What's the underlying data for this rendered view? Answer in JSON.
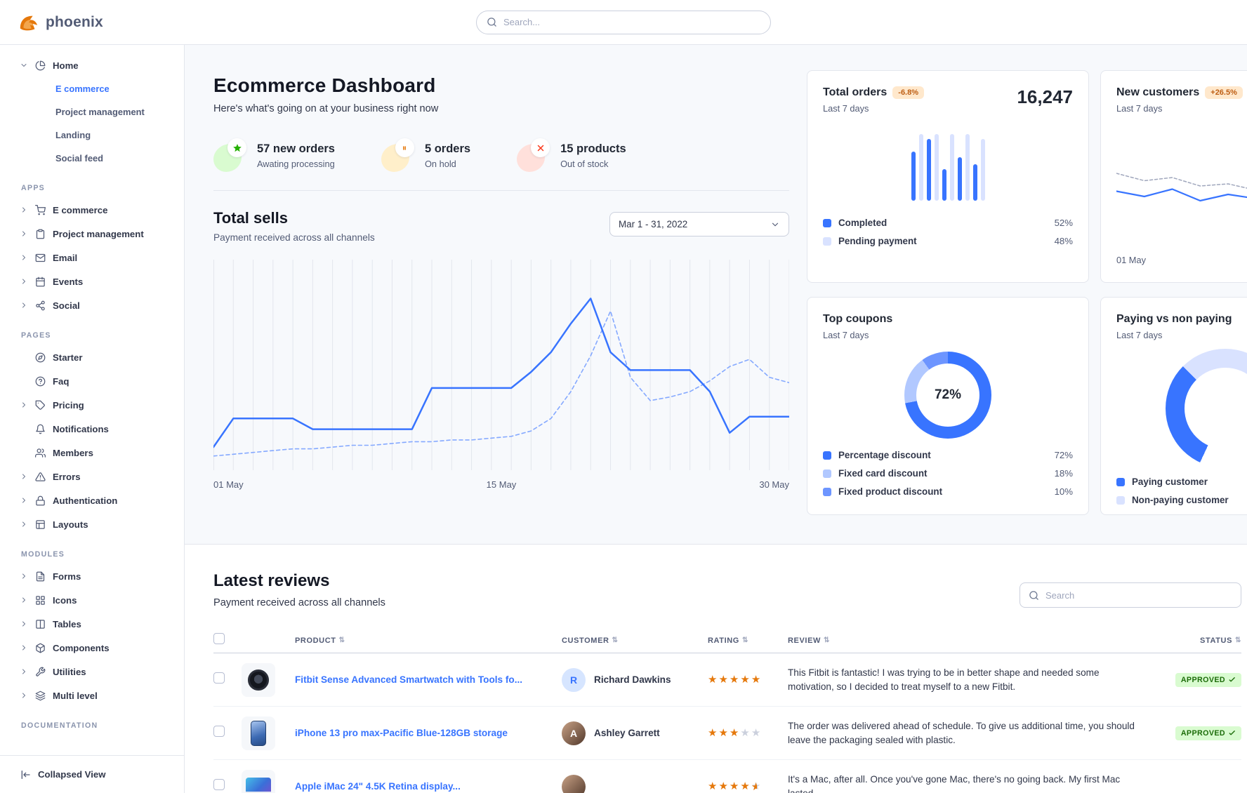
{
  "brand": {
    "name": "phoenix"
  },
  "header": {
    "search_placeholder": "Search..."
  },
  "sidebar": {
    "footer_label": "Collapsed View",
    "sections": [
      {
        "label": "",
        "items": [
          {
            "label": "Home",
            "icon": "pie-chart",
            "caret": "down",
            "children": [
              {
                "label": "E commerce",
                "active": true
              },
              {
                "label": "Project management"
              },
              {
                "label": "Landing"
              },
              {
                "label": "Social feed"
              }
            ]
          }
        ]
      },
      {
        "label": "APPS",
        "items": [
          {
            "label": "E commerce",
            "icon": "shopping-cart",
            "caret": "right"
          },
          {
            "label": "Project management",
            "icon": "clipboard",
            "caret": "right"
          },
          {
            "label": "Email",
            "icon": "mail",
            "caret": "right"
          },
          {
            "label": "Events",
            "icon": "calendar",
            "caret": "right"
          },
          {
            "label": "Social",
            "icon": "share-2",
            "caret": "right"
          }
        ]
      },
      {
        "label": "PAGES",
        "items": [
          {
            "label": "Starter",
            "icon": "compass"
          },
          {
            "label": "Faq",
            "icon": "help-circle"
          },
          {
            "label": "Pricing",
            "icon": "tag",
            "caret": "right"
          },
          {
            "label": "Notifications",
            "icon": "bell"
          },
          {
            "label": "Members",
            "icon": "users"
          },
          {
            "label": "Errors",
            "icon": "alert-triangle",
            "caret": "right"
          },
          {
            "label": "Authentication",
            "icon": "lock",
            "caret": "right"
          },
          {
            "label": "Layouts",
            "icon": "layout",
            "caret": "right"
          }
        ]
      },
      {
        "label": "MODULES",
        "items": [
          {
            "label": "Forms",
            "icon": "file-text",
            "caret": "right"
          },
          {
            "label": "Icons",
            "icon": "grid",
            "caret": "right"
          },
          {
            "label": "Tables",
            "icon": "columns",
            "caret": "right"
          },
          {
            "label": "Components",
            "icon": "package",
            "caret": "right"
          },
          {
            "label": "Utilities",
            "icon": "tool",
            "caret": "right"
          },
          {
            "label": "Multi level",
            "icon": "layers",
            "caret": "right"
          }
        ]
      },
      {
        "label": "DOCUMENTATION",
        "items": []
      }
    ]
  },
  "hero": {
    "title": "Ecommerce Dashboard",
    "subtitle": "Here's what's going on at your business right now"
  },
  "stats": [
    {
      "value": "57 new orders",
      "label": "Awating processing",
      "icon": "star-filled",
      "theme": "success"
    },
    {
      "value": "5 orders",
      "label": "On hold",
      "icon": "pause",
      "theme": "warning"
    },
    {
      "value": "15 products",
      "label": "Out of stock",
      "icon": "x",
      "theme": "danger"
    }
  ],
  "total_sells": {
    "title": "Total sells",
    "subtitle": "Payment received across all channels",
    "date_range": "Mar 1 - 31, 2022",
    "chart_data": {
      "type": "line",
      "x_labels": [
        "01 May",
        "15 May",
        "30 May"
      ],
      "ylim": [
        0,
        100
      ],
      "grid": "vertical",
      "series": [
        {
          "name": "current",
          "style": "solid",
          "color": "#3874ff",
          "values": [
            9,
            25,
            25,
            25,
            25,
            19,
            19,
            19,
            19,
            19,
            19,
            42,
            42,
            42,
            42,
            42,
            51,
            62,
            78,
            92,
            62,
            52,
            52,
            52,
            52,
            40,
            17,
            26,
            26,
            26
          ]
        },
        {
          "name": "previous",
          "style": "dashed",
          "color": "#85a9ff",
          "values": [
            4,
            5,
            6,
            7,
            8,
            8,
            9,
            10,
            10,
            11,
            12,
            12,
            13,
            13,
            14,
            15,
            18,
            25,
            40,
            60,
            85,
            48,
            35,
            37,
            40,
            46,
            54,
            58,
            48,
            45
          ]
        }
      ]
    }
  },
  "cards": {
    "total_orders": {
      "title": "Total orders",
      "badge": "-6.8%",
      "period": "Last 7 days",
      "value": "16,247",
      "legend": [
        {
          "label": "Completed",
          "value": "52%",
          "color": "#3874ff"
        },
        {
          "label": "Pending payment",
          "value": "48%",
          "color": "#d9e2ff"
        }
      ],
      "chart_data": {
        "type": "bar",
        "values": [
          70,
          95,
          88,
          95,
          45,
          95,
          62,
          95,
          52,
          88
        ],
        "series_keys": [
          "completed",
          "pending",
          "completed",
          "pending",
          "completed",
          "pending",
          "completed",
          "pending",
          "completed",
          "pending"
        ]
      }
    },
    "new_customers": {
      "title": "New customers",
      "badge": "+26.5%",
      "period": "Last 7 days",
      "x_label": "01 May",
      "chart_data": {
        "type": "line",
        "series": [
          {
            "name": "previous",
            "style": "dashed",
            "color": "#9fa6bc",
            "values": [
              62,
              55,
              58,
              50,
              52,
              46,
              49,
              43,
              46,
              40
            ]
          },
          {
            "name": "current",
            "style": "solid",
            "color": "#3874ff",
            "values": [
              45,
              40,
              47,
              36,
              42,
              38,
              40,
              62,
              54,
              58
            ]
          }
        ]
      }
    },
    "top_coupons": {
      "title": "Top coupons",
      "period": "Last 7 days",
      "center_label": "72%",
      "chart_data": {
        "type": "donut",
        "segments": [
          {
            "label": "Percentage discount",
            "value": 72,
            "display": "72%",
            "color": "#3874ff"
          },
          {
            "label": "Fixed card discount",
            "value": 18,
            "display": "18%",
            "color": "#b1c8ff"
          },
          {
            "label": "Fixed product discount",
            "value": 10,
            "display": "10%",
            "color": "#6d95ff"
          }
        ]
      }
    },
    "paying": {
      "title": "Paying vs non paying",
      "period": "Last 7 days",
      "chart_data": {
        "type": "gauge",
        "segments": [
          {
            "label": "Paying customer",
            "color": "#3874ff"
          },
          {
            "label": "Non-paying customer",
            "color": "#d9e2ff"
          }
        ]
      }
    }
  },
  "reviews": {
    "title": "Latest reviews",
    "subtitle": "Payment received across all channels",
    "search_placeholder": "Search",
    "columns": [
      "PRODUCT",
      "CUSTOMER",
      "RATING",
      "REVIEW",
      "STATUS"
    ],
    "rows": [
      {
        "product": "Fitbit Sense Advanced Smartwatch with Tools fo...",
        "thumb": "watch",
        "customer": "Richard Dawkins",
        "avatar_type": "initial",
        "avatar_initial": "R",
        "rating": 5,
        "review": "This Fitbit is fantastic! I was trying to be in better shape and needed some motivation, so I decided to treat myself to a new Fitbit.",
        "status": "APPROVED"
      },
      {
        "product": "iPhone 13 pro max-Pacific Blue-128GB storage",
        "thumb": "phone",
        "customer": "Ashley Garrett",
        "avatar_type": "photo",
        "avatar_initial": "A",
        "rating": 3,
        "review": "The order was delivered ahead of schedule. To give us additional time, you should leave the packaging sealed with plastic.",
        "status": "APPROVED"
      },
      {
        "product": "Apple iMac 24\" 4.5K Retina display...",
        "thumb": "imac",
        "customer": "",
        "avatar_type": "photo",
        "avatar_initial": "",
        "rating": 4.5,
        "review": "It's a Mac, after all. Once you've gone Mac, there's no going back. My first Mac lasted...",
        "status": ""
      }
    ]
  },
  "colors": {
    "primary": "#3874ff",
    "primary_pale": "#d9e2ff",
    "grid": "#e3e6ed",
    "star": "#e5780b",
    "success_bg": "#d9fbd0",
    "success_text": "#1c6c09"
  }
}
